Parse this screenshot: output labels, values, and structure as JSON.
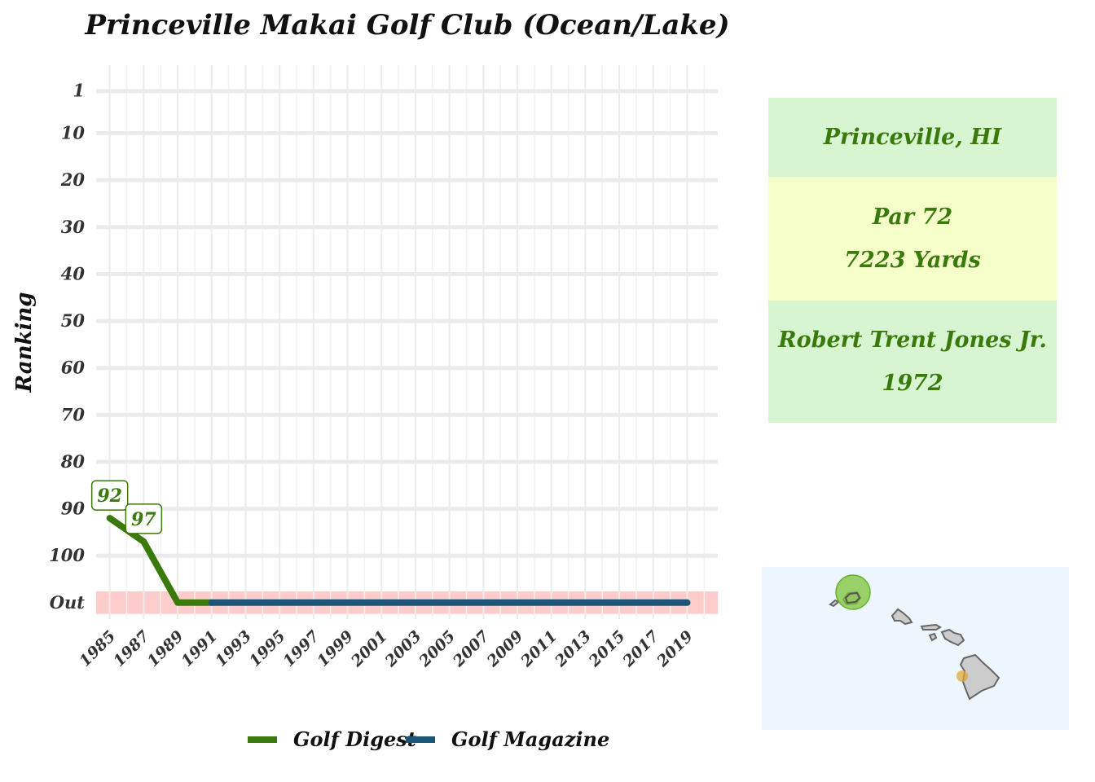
{
  "chart_data": {
    "type": "line",
    "title": "Princeville Makai Golf Club (Ocean/Lake)",
    "ylabel": "Ranking",
    "xlabel": "",
    "x_ticks": [
      "1985",
      "1987",
      "1989",
      "1991",
      "1993",
      "1995",
      "1997",
      "1999",
      "2001",
      "2003",
      "2005",
      "2007",
      "2009",
      "2011",
      "2013",
      "2015",
      "2017",
      "2019"
    ],
    "y_ticks": [
      "1",
      "10",
      "20",
      "30",
      "40",
      "50",
      "60",
      "70",
      "80",
      "90",
      "100",
      "Out"
    ],
    "y_tick_values": [
      1,
      10,
      20,
      30,
      40,
      50,
      60,
      70,
      80,
      90,
      100,
      110
    ],
    "out_value": 110,
    "x_range": [
      1984.2,
      2020.8
    ],
    "y_range": [
      -4.5,
      113.5
    ],
    "y_reversed": true,
    "grid": true,
    "legend_position": "bottom",
    "series": [
      {
        "name": "Golf Digest",
        "color": "#3a7a0c",
        "points": [
          [
            1985,
            92
          ],
          [
            1987,
            97
          ],
          [
            1989,
            110
          ],
          [
            1991,
            110
          ]
        ],
        "labels": [
          {
            "x": 1985,
            "y": 92,
            "text": "92"
          },
          {
            "x": 1987,
            "y": 97,
            "text": "97"
          }
        ]
      },
      {
        "name": "Golf Magazine",
        "color": "#1b5577",
        "points": [
          [
            1991,
            110
          ],
          [
            2019,
            110
          ]
        ],
        "labels": []
      }
    ],
    "out_band_color": "#ffcccc"
  },
  "info": {
    "location": "Princeville, HI",
    "par": "Par 72",
    "yards": "7223 Yards",
    "designer": "Robert Trent Jones Jr.",
    "year": "1972",
    "colors": {
      "light_green": "#d8f5d2",
      "light_yellow": "#f5fdc8",
      "text": "#3a7a0c"
    }
  },
  "map": {
    "background": "#edf5fd",
    "land_color": "#cccccc",
    "highlight_color": "#7cc436",
    "secondary_marker_color": "#e0a53a"
  }
}
